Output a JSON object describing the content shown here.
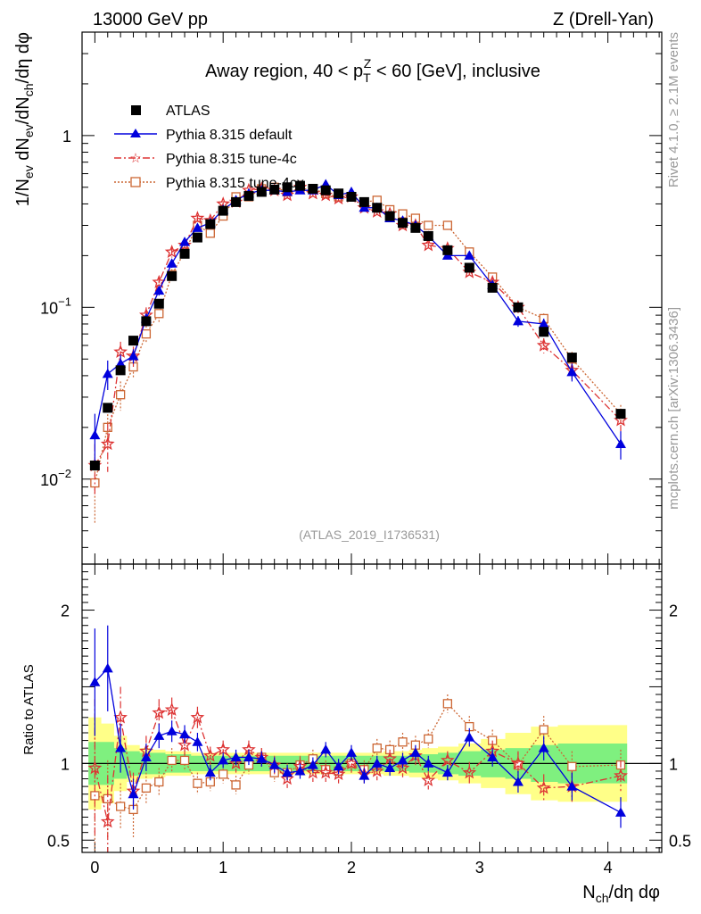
{
  "header": {
    "left": "13000 GeV pp",
    "right": "Z (Drell-Yan)"
  },
  "side": {
    "rivet": "Rivet 4.1.0, ≥ 2.1M events",
    "mcplots": "mcplots.cern.ch [arXiv:1306.3436]"
  },
  "analysis_id": "(ATLAS_2019_I1736531)",
  "legend_labels": [
    "ATLAS",
    "Pythia 8.315 default",
    "Pythia 8.315 tune-4c",
    "Pythia 8.315 tune-4cx"
  ],
  "main_title": "Away region, 40 < p_T^Z < 60 [GeV], inclusive",
  "ylabel_main": "1/N_ev dN_ev/dN_ch/dη dφ",
  "ylabel_ratio": "Ratio to ATLAS",
  "xlabel": "N_ch/dη dφ",
  "colors": {
    "default": "#0000dd",
    "tune4c": "#dd3333",
    "tune4cx": "#cc6633",
    "data": "#000000",
    "band_inner": "#7ff07f",
    "band_outer": "#ffff88"
  },
  "chart_data": [
    {
      "type": "scatter",
      "title": "Away region, 40 < p_T^Z < 60 [GeV], inclusive",
      "xlabel": "N_ch/dη dφ",
      "ylabel": "1/N_ev dN_ev/dN_ch/dη dφ",
      "yscale": "log",
      "xlim": [
        -0.1,
        4.42
      ],
      "ylim": [
        0.0032,
        4.0
      ],
      "xticks": [
        0,
        1,
        2,
        3,
        4
      ],
      "xtick_labels": [
        "0",
        "1",
        "2",
        "3",
        "4"
      ],
      "yticks": [
        0.01,
        0.1,
        1
      ],
      "ytick_labels": [
        "10^-2",
        "10^-1",
        "1"
      ],
      "legend_position": "top-left",
      "x": [
        0.0,
        0.1,
        0.2,
        0.3,
        0.4,
        0.5,
        0.6,
        0.7,
        0.8,
        0.9,
        1.0,
        1.1,
        1.2,
        1.3,
        1.4,
        1.5,
        1.6,
        1.7,
        1.8,
        1.9,
        2.0,
        2.1,
        2.2,
        2.3,
        2.4,
        2.5,
        2.6,
        2.75,
        2.92,
        3.1,
        3.3,
        3.5,
        3.72,
        4.1
      ],
      "series": [
        {
          "name": "ATLAS",
          "marker": "square",
          "values": [
            0.012,
            0.026,
            0.043,
            0.064,
            0.083,
            0.105,
            0.152,
            0.205,
            0.255,
            0.305,
            0.365,
            0.41,
            0.445,
            0.47,
            0.485,
            0.5,
            0.51,
            0.49,
            0.48,
            0.46,
            0.44,
            0.41,
            0.38,
            0.34,
            0.31,
            0.29,
            0.26,
            0.215,
            0.17,
            0.13,
            0.1,
            0.072,
            0.051,
            0.024
          ]
        },
        {
          "name": "Pythia 8.315 default",
          "marker": "triangle",
          "values": [
            0.018,
            0.041,
            0.047,
            0.052,
            0.086,
            0.125,
            0.18,
            0.24,
            0.29,
            0.31,
            0.37,
            0.42,
            0.46,
            0.48,
            0.48,
            0.47,
            0.48,
            0.48,
            0.52,
            0.45,
            0.47,
            0.38,
            0.38,
            0.33,
            0.32,
            0.3,
            0.26,
            0.2,
            0.2,
            0.135,
            0.083,
            0.08,
            0.042,
            0.016
          ],
          "errors": [
            0.006,
            0.008,
            0.006,
            0.005,
            0.006,
            0.008,
            0.01,
            0.012,
            0.012,
            0.012,
            0.012,
            0.012,
            0.012,
            0.012,
            0.012,
            0.012,
            0.012,
            0.012,
            0.015,
            0.012,
            0.012,
            0.01,
            0.01,
            0.01,
            0.01,
            0.01,
            0.01,
            0.008,
            0.008,
            0.007,
            0.006,
            0.006,
            0.005,
            0.003
          ]
        },
        {
          "name": "Pythia 8.315 tune-4c",
          "marker": "star",
          "values": [
            0.012,
            0.016,
            0.055,
            0.052,
            0.09,
            0.14,
            0.21,
            0.23,
            0.33,
            0.32,
            0.4,
            0.41,
            0.48,
            0.49,
            0.48,
            0.45,
            0.5,
            0.46,
            0.45,
            0.43,
            0.44,
            0.38,
            0.36,
            0.35,
            0.3,
            0.3,
            0.23,
            0.22,
            0.16,
            0.14,
            0.1,
            0.06,
            0.043,
            0.022
          ],
          "errors": [
            0.004,
            0.005,
            0.008,
            0.007,
            0.01,
            0.012,
            0.015,
            0.015,
            0.015,
            0.015,
            0.015,
            0.015,
            0.015,
            0.015,
            0.015,
            0.015,
            0.015,
            0.015,
            0.015,
            0.015,
            0.015,
            0.012,
            0.012,
            0.012,
            0.012,
            0.012,
            0.012,
            0.01,
            0.01,
            0.008,
            0.008,
            0.006,
            0.005,
            0.003
          ]
        },
        {
          "name": "Pythia 8.315 tune-4cx",
          "marker": "open-square",
          "values": [
            0.0095,
            0.02,
            0.031,
            0.045,
            0.07,
            0.092,
            0.155,
            0.21,
            0.3,
            0.27,
            0.34,
            0.44,
            0.44,
            0.49,
            0.5,
            0.47,
            0.49,
            0.49,
            0.46,
            0.44,
            0.44,
            0.41,
            0.42,
            0.37,
            0.35,
            0.33,
            0.3,
            0.3,
            0.21,
            0.15,
            0.1,
            0.086,
            0.05,
            0.024
          ],
          "errors": [
            0.004,
            0.005,
            0.006,
            0.006,
            0.008,
            0.01,
            0.012,
            0.014,
            0.015,
            0.015,
            0.015,
            0.015,
            0.015,
            0.015,
            0.015,
            0.015,
            0.015,
            0.015,
            0.015,
            0.015,
            0.015,
            0.013,
            0.013,
            0.012,
            0.012,
            0.012,
            0.012,
            0.012,
            0.01,
            0.008,
            0.007,
            0.006,
            0.005,
            0.003
          ]
        }
      ]
    },
    {
      "type": "line",
      "title": "Ratio to ATLAS",
      "xlabel": "N_ch/dη dφ",
      "ylabel": "Ratio to ATLAS",
      "xlim": [
        -0.1,
        4.42
      ],
      "ylim": [
        0.42,
        2.3
      ],
      "yticks": [
        0.5,
        1,
        2
      ],
      "ytick_labels": [
        "0.5",
        "1",
        "2"
      ],
      "x": [
        0.0,
        0.1,
        0.2,
        0.3,
        0.4,
        0.5,
        0.6,
        0.7,
        0.8,
        0.9,
        1.0,
        1.1,
        1.2,
        1.3,
        1.4,
        1.5,
        1.6,
        1.7,
        1.8,
        1.9,
        2.0,
        2.1,
        2.2,
        2.3,
        2.4,
        2.5,
        2.6,
        2.75,
        2.92,
        3.1,
        3.3,
        3.5,
        3.72,
        4.1
      ],
      "band_inner": [
        0.14,
        0.14,
        0.1,
        0.08,
        0.07,
        0.07,
        0.06,
        0.06,
        0.05,
        0.05,
        0.05,
        0.05,
        0.05,
        0.05,
        0.05,
        0.05,
        0.05,
        0.05,
        0.05,
        0.05,
        0.05,
        0.05,
        0.05,
        0.05,
        0.05,
        0.06,
        0.06,
        0.07,
        0.08,
        0.09,
        0.1,
        0.12,
        0.13,
        0.13
      ],
      "band_outer": [
        0.3,
        0.26,
        0.18,
        0.12,
        0.1,
        0.09,
        0.08,
        0.08,
        0.07,
        0.07,
        0.07,
        0.07,
        0.07,
        0.07,
        0.07,
        0.07,
        0.07,
        0.07,
        0.07,
        0.07,
        0.07,
        0.07,
        0.07,
        0.08,
        0.08,
        0.09,
        0.1,
        0.11,
        0.13,
        0.16,
        0.2,
        0.24,
        0.25,
        0.25
      ],
      "series": [
        {
          "name": "Pythia 8.315 default",
          "values": [
            1.53,
            1.62,
            1.1,
            0.8,
            1.04,
            1.18,
            1.21,
            1.19,
            1.14,
            0.94,
            1.02,
            1.04,
            1.04,
            1.03,
            0.99,
            0.94,
            0.95,
            0.99,
            1.09,
            0.98,
            1.07,
            0.92,
            1.0,
            0.97,
            1.02,
            1.07,
            1.0,
            0.94,
            1.17,
            1.04,
            0.88,
            1.1,
            0.85,
            0.68
          ],
          "errors": [
            0.35,
            0.28,
            0.16,
            0.1,
            0.09,
            0.08,
            0.07,
            0.06,
            0.06,
            0.05,
            0.05,
            0.05,
            0.05,
            0.05,
            0.05,
            0.05,
            0.05,
            0.05,
            0.05,
            0.05,
            0.05,
            0.05,
            0.05,
            0.05,
            0.05,
            0.05,
            0.05,
            0.05,
            0.06,
            0.06,
            0.07,
            0.08,
            0.09,
            0.1
          ]
        },
        {
          "name": "Pythia 8.315 tune-4c",
          "values": [
            0.97,
            0.62,
            1.3,
            0.82,
            1.08,
            1.33,
            1.35,
            1.12,
            1.3,
            1.05,
            1.09,
            1.0,
            1.09,
            1.04,
            0.99,
            0.9,
            0.98,
            0.94,
            0.94,
            0.93,
            1.0,
            0.93,
            0.95,
            1.03,
            0.97,
            1.05,
            0.89,
            1.02,
            0.94,
            1.08,
            1.0,
            0.84,
            0.85,
            0.92
          ],
          "errors": [
            0.45,
            0.3,
            0.2,
            0.12,
            0.1,
            0.09,
            0.08,
            0.07,
            0.07,
            0.06,
            0.06,
            0.06,
            0.06,
            0.06,
            0.06,
            0.06,
            0.06,
            0.06,
            0.06,
            0.06,
            0.06,
            0.06,
            0.06,
            0.06,
            0.06,
            0.06,
            0.06,
            0.06,
            0.07,
            0.07,
            0.08,
            0.09,
            0.1,
            0.1
          ]
        },
        {
          "name": "Pythia 8.315 tune-4cx",
          "values": [
            0.79,
            0.77,
            0.72,
            0.7,
            0.84,
            0.88,
            1.02,
            1.02,
            0.87,
            0.88,
            0.93,
            0.86,
            0.99,
            1.04,
            0.94,
            0.94,
            0.99,
            1.03,
            0.96,
            0.95,
            1.0,
            0.96,
            1.1,
            1.09,
            1.14,
            1.12,
            1.16,
            1.39,
            1.24,
            1.15,
            0.99,
            1.22,
            0.98,
            0.99
          ],
          "errors": [
            0.4,
            0.25,
            0.15,
            0.18,
            0.1,
            0.09,
            0.08,
            0.07,
            0.07,
            0.06,
            0.06,
            0.06,
            0.06,
            0.06,
            0.06,
            0.06,
            0.06,
            0.06,
            0.06,
            0.06,
            0.06,
            0.06,
            0.06,
            0.06,
            0.06,
            0.06,
            0.06,
            0.06,
            0.07,
            0.07,
            0.08,
            0.09,
            0.1,
            0.1
          ]
        }
      ]
    }
  ]
}
